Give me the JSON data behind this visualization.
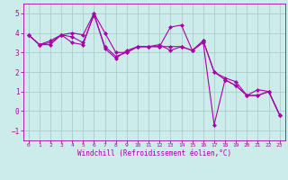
{
  "xlabel": "Windchill (Refroidissement éolien,°C)",
  "x_values": [
    0,
    1,
    2,
    3,
    4,
    5,
    6,
    7,
    8,
    9,
    10,
    11,
    12,
    13,
    14,
    15,
    16,
    17,
    18,
    19,
    20,
    21,
    22,
    23
  ],
  "line1": [
    3.9,
    3.4,
    3.4,
    3.9,
    3.5,
    3.4,
    5.0,
    3.2,
    2.7,
    3.1,
    3.3,
    3.3,
    3.4,
    3.1,
    3.3,
    3.1,
    3.6,
    2.0,
    1.6,
    1.3,
    0.8,
    1.1,
    1.0,
    -0.2
  ],
  "line2": [
    3.9,
    3.4,
    3.6,
    3.9,
    4.0,
    3.9,
    5.0,
    4.0,
    3.0,
    3.0,
    3.3,
    3.3,
    3.3,
    4.3,
    4.4,
    3.1,
    3.6,
    2.0,
    1.7,
    1.5,
    0.8,
    0.8,
    1.0,
    -0.2
  ],
  "line3": [
    3.9,
    3.4,
    3.5,
    3.9,
    3.8,
    3.5,
    4.9,
    3.3,
    2.8,
    3.0,
    3.3,
    3.3,
    3.3,
    3.3,
    3.3,
    3.1,
    3.5,
    -0.7,
    1.6,
    1.3,
    0.8,
    0.8,
    1.0,
    -0.2
  ],
  "line_color": "#aa00aa",
  "bg_color": "#ccecea",
  "grid_color": "#aacccc",
  "ylim": [
    -1.5,
    5.5
  ],
  "xlim": [
    -0.5,
    23.5
  ],
  "yticks": [
    -1,
    0,
    1,
    2,
    3,
    4,
    5
  ],
  "xticks": [
    0,
    1,
    2,
    3,
    4,
    5,
    6,
    7,
    8,
    9,
    10,
    11,
    12,
    13,
    14,
    15,
    16,
    17,
    18,
    19,
    20,
    21,
    22,
    23
  ],
  "marker": "D",
  "marker_size": 2.0,
  "linewidth": 0.8,
  "xlabel_fontsize": 5.5,
  "tick_fontsize_x": 4.5,
  "tick_fontsize_y": 5.5
}
